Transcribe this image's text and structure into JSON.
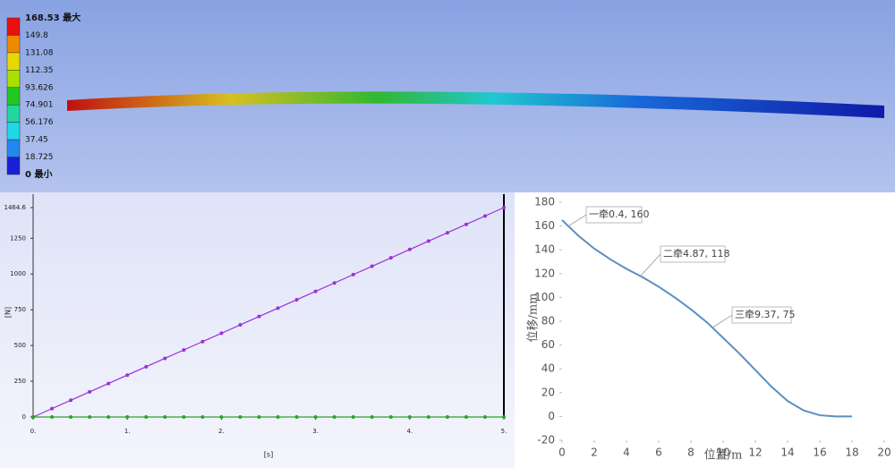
{
  "chart_data": [
    {
      "type": "contour",
      "levels": [
        {
          "value": 168.53,
          "label": "168.53 最大"
        },
        149.8,
        131.08,
        112.35,
        93.626,
        74.901,
        56.176,
        37.45,
        18.725,
        {
          "value": 0,
          "label": "0 最小"
        }
      ],
      "band_colors": [
        "#e81010",
        "#f08a00",
        "#e8d800",
        "#a8e000",
        "#20c820",
        "#20d8a0",
        "#20d8e8",
        "#2088f0",
        "#1820d8"
      ]
    },
    {
      "type": "line",
      "xlabel": "[s]",
      "ylabel": "[N]",
      "x": [
        0,
        0.2,
        0.4,
        0.6,
        0.8,
        1,
        1.2,
        1.4,
        1.6,
        1.8,
        2,
        2.2,
        2.4,
        2.6,
        2.8,
        3,
        3.2,
        3.4,
        3.6,
        3.8,
        4,
        4.2,
        4.4,
        4.6,
        4.8,
        5
      ],
      "series": [
        {
          "color": "#9b30d8",
          "values": [
            0,
            58.6,
            117.2,
            175.8,
            234.3,
            292.9,
            351.5,
            410.1,
            468.7,
            527.3,
            585.8,
            644.4,
            703.0,
            761.6,
            820.2,
            878.8,
            937.3,
            995.9,
            1054.5,
            1113.1,
            1171.7,
            1230.3,
            1288.9,
            1347.4,
            1406.0,
            1464.6
          ]
        },
        {
          "color": "#2ea02e",
          "values": [
            0,
            0,
            0,
            0,
            0,
            0,
            0,
            0,
            0,
            0,
            0,
            0,
            0,
            0,
            0,
            0,
            0,
            0,
            0,
            0,
            0,
            0,
            0,
            0,
            0,
            0
          ]
        }
      ],
      "xlim": [
        0,
        5
      ],
      "ylim": [
        0,
        1464.6
      ],
      "xticks": [
        {
          "value": 0,
          "label": "0."
        },
        {
          "value": 1,
          "label": "1."
        },
        {
          "value": 2,
          "label": "2."
        },
        {
          "value": 3,
          "label": "3."
        },
        {
          "value": 4,
          "label": "4."
        },
        {
          "value": 5,
          "label": "5."
        }
      ],
      "yticks": [
        0,
        250,
        500,
        750,
        1000,
        1250,
        1464.6
      ],
      "grid": false
    },
    {
      "type": "line",
      "xlabel": "位置/m",
      "ylabel": "位移/mm",
      "x": [
        0,
        1,
        2,
        3,
        4,
        5,
        6,
        7,
        8,
        9,
        10,
        11,
        12,
        13,
        14,
        15,
        16,
        17,
        18
      ],
      "series": [
        {
          "color": "#5b8ec0",
          "values": [
            165,
            152,
            141,
            132,
            124,
            117,
            109,
            100,
            90,
            79,
            66,
            53,
            39,
            25,
            13,
            5,
            1,
            0,
            0
          ]
        }
      ],
      "xlim": [
        0,
        20
      ],
      "ylim": [
        -20,
        180
      ],
      "xticks": [
        0,
        2,
        4,
        6,
        8,
        10,
        12,
        14,
        16,
        18,
        20
      ],
      "yticks": [
        -20,
        0,
        20,
        40,
        60,
        80,
        100,
        120,
        140,
        160,
        180
      ],
      "grid": false,
      "annotations": [
        {
          "text": "一牵0.4, 160",
          "x": 0.4,
          "y": 160
        },
        {
          "text": "二牵4.87, 118",
          "x": 4.87,
          "y": 118
        },
        {
          "text": "三牵9.37, 75",
          "x": 9.37,
          "y": 75
        }
      ]
    }
  ]
}
